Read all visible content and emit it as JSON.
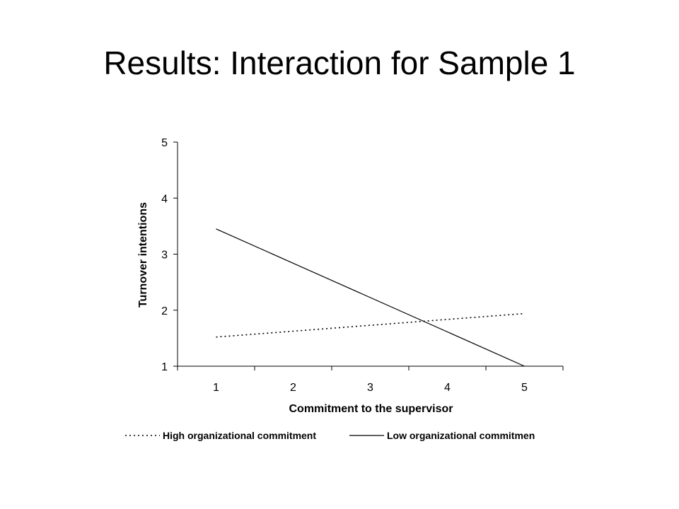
{
  "slide": {
    "title": "Results: Interaction for Sample 1"
  },
  "chart_data": {
    "type": "line",
    "x": [
      1,
      5
    ],
    "categories": [
      "1",
      "2",
      "3",
      "4",
      "5"
    ],
    "series": [
      {
        "name": "High organizational commitment",
        "values": [
          1.52,
          1.94
        ],
        "style": "dotted",
        "color": "#000000"
      },
      {
        "name": "Low organizational commitmen",
        "values": [
          3.45,
          1.0
        ],
        "style": "solid",
        "color": "#000000"
      }
    ],
    "title": "",
    "xlabel": "Commitment to the supervisor",
    "ylabel": "Turnover intentions",
    "ylim": [
      1,
      5
    ],
    "yticks": [
      "1",
      "2",
      "3",
      "4",
      "5"
    ],
    "grid": false,
    "legend_position": "bottom"
  }
}
